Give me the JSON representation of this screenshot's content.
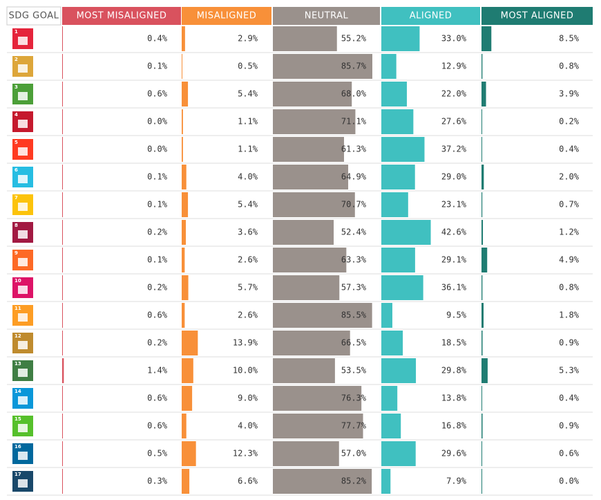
{
  "chart_data": {
    "type": "bar_table",
    "category_header": "SDG GOAL",
    "categories": [
      "1",
      "2",
      "3",
      "4",
      "5",
      "6",
      "7",
      "8",
      "9",
      "10",
      "11",
      "12",
      "13",
      "14",
      "15",
      "16",
      "17"
    ],
    "category_colors": [
      "#e5243b",
      "#dda63a",
      "#4c9f38",
      "#c5192d",
      "#ff3a21",
      "#26bde2",
      "#fcc30b",
      "#a21942",
      "#fd6925",
      "#dd1367",
      "#fd9d24",
      "#bf8b2e",
      "#3f7e44",
      "#0a97d9",
      "#56c02b",
      "#00689d",
      "#19486a"
    ],
    "xlim": [
      0,
      100
    ],
    "series": [
      {
        "name": "MOST MISALIGNED",
        "color": "#d9525e",
        "values": [
          0.4,
          0.1,
          0.6,
          0.0,
          0.0,
          0.1,
          0.1,
          0.2,
          0.1,
          0.2,
          0.6,
          0.2,
          1.4,
          0.6,
          0.6,
          0.5,
          0.3
        ],
        "value_labels": [
          "0.4%",
          "0.1%",
          "0.6%",
          "0.0%",
          "0.0%",
          "0.1%",
          "0.1%",
          "0.2%",
          "0.1%",
          "0.2%",
          "0.6%",
          "0.2%",
          "1.4%",
          "0.6%",
          "0.6%",
          "0.5%",
          "0.3%"
        ]
      },
      {
        "name": "MISALIGNED",
        "color": "#f89039",
        "values": [
          2.9,
          0.5,
          5.4,
          1.1,
          1.1,
          4.0,
          5.4,
          3.6,
          2.6,
          5.7,
          2.6,
          13.9,
          10.0,
          9.0,
          4.0,
          12.3,
          6.6
        ],
        "value_labels": [
          "2.9%",
          "0.5%",
          "5.4%",
          "1.1%",
          "1.1%",
          "4.0%",
          "5.4%",
          "3.6%",
          "2.6%",
          "5.7%",
          "2.6%",
          "13.9%",
          "10.0%",
          "9.0%",
          "4.0%",
          "12.3%",
          "6.6%"
        ]
      },
      {
        "name": "NEUTRAL",
        "color": "#9a918c",
        "values": [
          55.2,
          85.7,
          68.0,
          71.1,
          61.3,
          64.9,
          70.7,
          52.4,
          63.3,
          57.3,
          85.5,
          66.5,
          53.5,
          76.3,
          77.7,
          57.0,
          85.2
        ],
        "value_labels": [
          "55.2%",
          "85.7%",
          "68.0%",
          "71.1%",
          "61.3%",
          "64.9%",
          "70.7%",
          "52.4%",
          "63.3%",
          "57.3%",
          "85.5%",
          "66.5%",
          "53.5%",
          "76.3%",
          "77.7%",
          "57.0%",
          "85.2%"
        ]
      },
      {
        "name": "ALIGNED",
        "color": "#40c0c0",
        "values": [
          33.0,
          12.9,
          22.0,
          27.6,
          37.2,
          29.0,
          23.1,
          42.6,
          29.1,
          36.1,
          9.5,
          18.5,
          29.8,
          13.8,
          16.8,
          29.6,
          7.9
        ],
        "value_labels": [
          "33.0%",
          "12.9%",
          "22.0%",
          "27.6%",
          "37.2%",
          "29.0%",
          "23.1%",
          "42.6%",
          "29.1%",
          "36.1%",
          "9.5%",
          "18.5%",
          "29.8%",
          "13.8%",
          "16.8%",
          "29.6%",
          "7.9%"
        ]
      },
      {
        "name": "MOST ALIGNED",
        "color": "#1f7c72",
        "values": [
          8.5,
          0.8,
          3.9,
          0.2,
          0.4,
          2.0,
          0.7,
          1.2,
          4.9,
          0.8,
          1.8,
          0.9,
          5.3,
          0.4,
          0.9,
          0.6,
          0.0
        ],
        "value_labels": [
          "8.5%",
          "0.8%",
          "3.9%",
          "0.2%",
          "0.4%",
          "2.0%",
          "0.7%",
          "1.2%",
          "4.9%",
          "0.8%",
          "1.8%",
          "0.9%",
          "5.3%",
          "0.4%",
          "0.9%",
          "0.6%",
          "0.0%"
        ]
      }
    ]
  }
}
